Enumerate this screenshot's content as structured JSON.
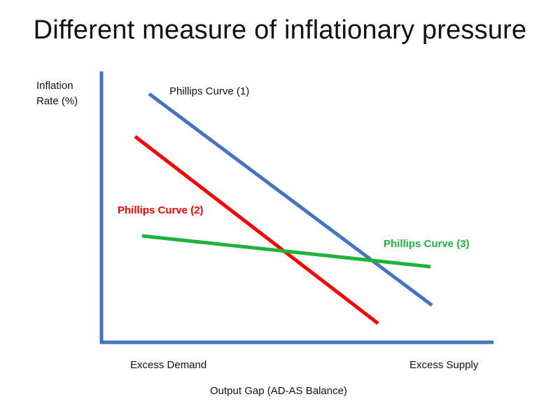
{
  "title": "Different measure of inflationary pressure",
  "axes": {
    "y_label_line1": "Inflation",
    "y_label_line2": "Rate (%)",
    "x_left_label": "Excess Demand",
    "x_right_label": "Excess Supply",
    "x_label": "Output Gap (AD-AS Balance)"
  },
  "colors": {
    "axis": "#4472C4",
    "curve1": "#4472C4",
    "curve2": "#FF0000",
    "curve3": "#1DB33A"
  },
  "curves": [
    {
      "name": "Phillips Curve (1)",
      "color": "#4472C4",
      "label_color": "#111111"
    },
    {
      "name": "Phillips Curve (2)",
      "color": "#FF0000",
      "label_color": "#FF0000"
    },
    {
      "name": "Phillips Curve (3)",
      "color": "#1DB33A",
      "label_color": "#1DB33A"
    }
  ]
}
